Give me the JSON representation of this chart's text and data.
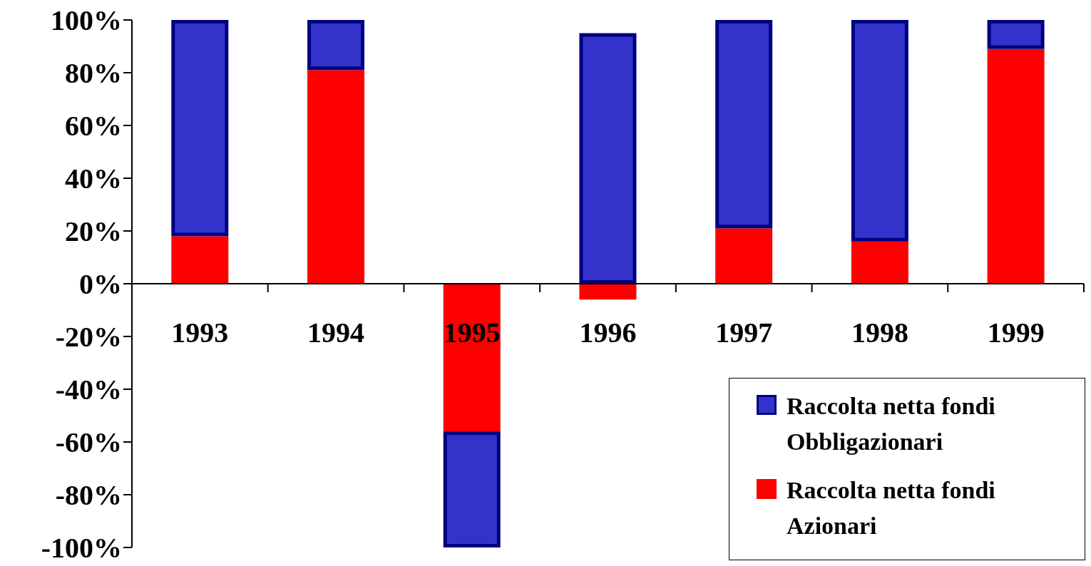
{
  "chart_data": {
    "type": "bar",
    "stacked": true,
    "categories": [
      "1993",
      "1994",
      "1995",
      "1996",
      "1997",
      "1998",
      "1999"
    ],
    "series": [
      {
        "name": "Raccolta netta fondi Azionari",
        "color": "#ff0000",
        "values": [
          18,
          81,
          -56,
          -6,
          21,
          16,
          89
        ]
      },
      {
        "name": "Raccolta netta fondi Obbligazionari",
        "color": "#3333cc",
        "values": [
          82,
          19,
          -44,
          95,
          79,
          84,
          11
        ]
      }
    ],
    "ylim": [
      -100,
      100
    ],
    "yticks": [
      {
        "value": -100,
        "label": "-100%"
      },
      {
        "value": -80,
        "label": "-80%"
      },
      {
        "value": -60,
        "label": "-60%"
      },
      {
        "value": -40,
        "label": "-40%"
      },
      {
        "value": -20,
        "label": "-20%"
      },
      {
        "value": 0,
        "label": "0%"
      },
      {
        "value": 20,
        "label": "20%"
      },
      {
        "value": 40,
        "label": "40%"
      },
      {
        "value": 60,
        "label": "60%"
      },
      {
        "value": 80,
        "label": "80%"
      },
      {
        "value": 100,
        "label": "100%"
      }
    ],
    "grid": false,
    "legend": "bottom right"
  }
}
